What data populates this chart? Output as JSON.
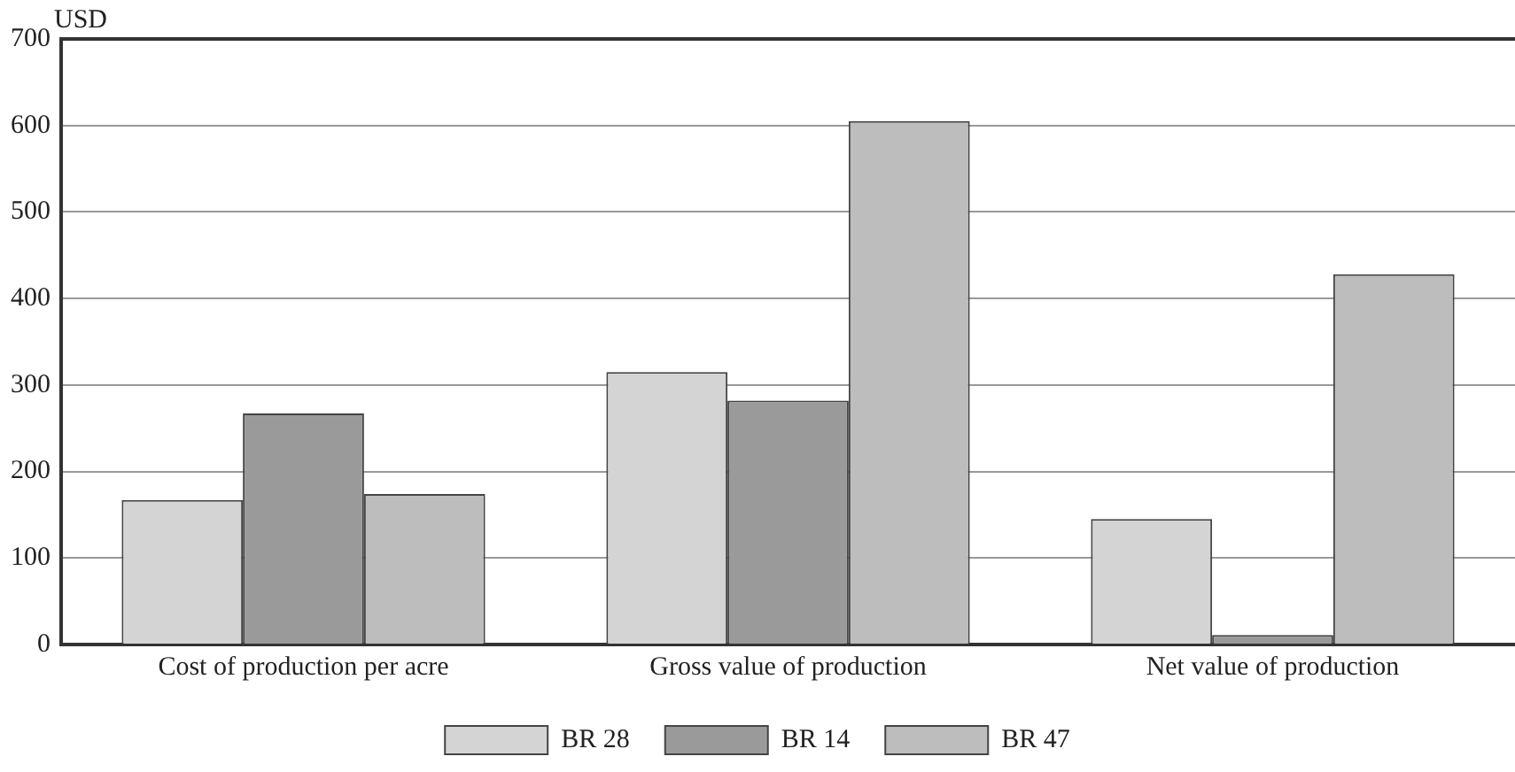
{
  "chart_data": {
    "type": "bar",
    "ylabel": "USD",
    "categories": [
      "Cost of production per acre",
      "Gross value of production",
      "Net value of production"
    ],
    "series": [
      {
        "name": "BR 28",
        "color": "#d4d4d4",
        "values": [
          167,
          315,
          145
        ]
      },
      {
        "name": "BR 14",
        "color": "#9a9a9a",
        "values": [
          267,
          282,
          11
        ]
      },
      {
        "name": "BR 47",
        "color": "#bdbdbd",
        "values": [
          174,
          605,
          428
        ]
      }
    ],
    "ylim": [
      0,
      700
    ],
    "yticks": [
      0,
      100,
      200,
      300,
      400,
      500,
      600,
      700
    ],
    "grid": "y",
    "legend": "bottom"
  }
}
